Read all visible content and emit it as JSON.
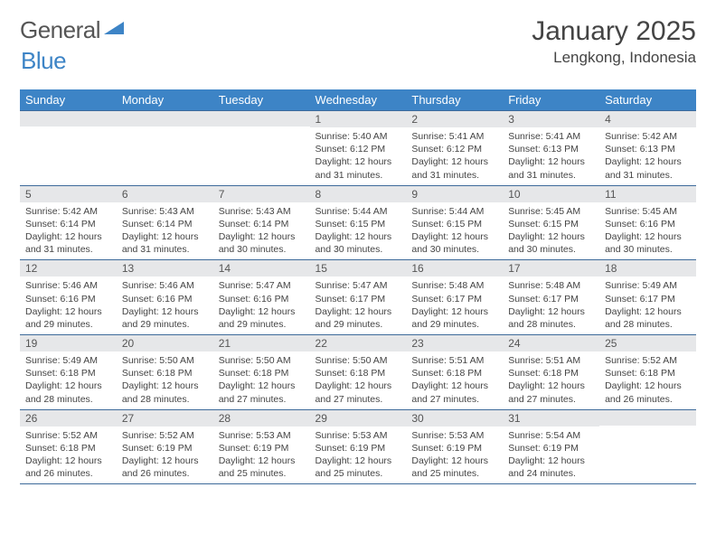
{
  "logo": {
    "word1": "General",
    "word2": "Blue"
  },
  "title": "January 2025",
  "location": "Lengkong, Indonesia",
  "colors": {
    "header_bg": "#3d84c6",
    "header_text": "#ffffff",
    "daynum_bg": "#e6e7e9",
    "row_border": "#3d6a9a",
    "text": "#444444",
    "logo_gray": "#555555",
    "logo_blue": "#3d84c6"
  },
  "weekdays": [
    "Sunday",
    "Monday",
    "Tuesday",
    "Wednesday",
    "Thursday",
    "Friday",
    "Saturday"
  ],
  "weeks": [
    [
      {
        "n": "",
        "sr": "",
        "ss": "",
        "dl": ""
      },
      {
        "n": "",
        "sr": "",
        "ss": "",
        "dl": ""
      },
      {
        "n": "",
        "sr": "",
        "ss": "",
        "dl": ""
      },
      {
        "n": "1",
        "sr": "5:40 AM",
        "ss": "6:12 PM",
        "dl": "12 hours and 31 minutes."
      },
      {
        "n": "2",
        "sr": "5:41 AM",
        "ss": "6:12 PM",
        "dl": "12 hours and 31 minutes."
      },
      {
        "n": "3",
        "sr": "5:41 AM",
        "ss": "6:13 PM",
        "dl": "12 hours and 31 minutes."
      },
      {
        "n": "4",
        "sr": "5:42 AM",
        "ss": "6:13 PM",
        "dl": "12 hours and 31 minutes."
      }
    ],
    [
      {
        "n": "5",
        "sr": "5:42 AM",
        "ss": "6:14 PM",
        "dl": "12 hours and 31 minutes."
      },
      {
        "n": "6",
        "sr": "5:43 AM",
        "ss": "6:14 PM",
        "dl": "12 hours and 31 minutes."
      },
      {
        "n": "7",
        "sr": "5:43 AM",
        "ss": "6:14 PM",
        "dl": "12 hours and 30 minutes."
      },
      {
        "n": "8",
        "sr": "5:44 AM",
        "ss": "6:15 PM",
        "dl": "12 hours and 30 minutes."
      },
      {
        "n": "9",
        "sr": "5:44 AM",
        "ss": "6:15 PM",
        "dl": "12 hours and 30 minutes."
      },
      {
        "n": "10",
        "sr": "5:45 AM",
        "ss": "6:15 PM",
        "dl": "12 hours and 30 minutes."
      },
      {
        "n": "11",
        "sr": "5:45 AM",
        "ss": "6:16 PM",
        "dl": "12 hours and 30 minutes."
      }
    ],
    [
      {
        "n": "12",
        "sr": "5:46 AM",
        "ss": "6:16 PM",
        "dl": "12 hours and 29 minutes."
      },
      {
        "n": "13",
        "sr": "5:46 AM",
        "ss": "6:16 PM",
        "dl": "12 hours and 29 minutes."
      },
      {
        "n": "14",
        "sr": "5:47 AM",
        "ss": "6:16 PM",
        "dl": "12 hours and 29 minutes."
      },
      {
        "n": "15",
        "sr": "5:47 AM",
        "ss": "6:17 PM",
        "dl": "12 hours and 29 minutes."
      },
      {
        "n": "16",
        "sr": "5:48 AM",
        "ss": "6:17 PM",
        "dl": "12 hours and 29 minutes."
      },
      {
        "n": "17",
        "sr": "5:48 AM",
        "ss": "6:17 PM",
        "dl": "12 hours and 28 minutes."
      },
      {
        "n": "18",
        "sr": "5:49 AM",
        "ss": "6:17 PM",
        "dl": "12 hours and 28 minutes."
      }
    ],
    [
      {
        "n": "19",
        "sr": "5:49 AM",
        "ss": "6:18 PM",
        "dl": "12 hours and 28 minutes."
      },
      {
        "n": "20",
        "sr": "5:50 AM",
        "ss": "6:18 PM",
        "dl": "12 hours and 28 minutes."
      },
      {
        "n": "21",
        "sr": "5:50 AM",
        "ss": "6:18 PM",
        "dl": "12 hours and 27 minutes."
      },
      {
        "n": "22",
        "sr": "5:50 AM",
        "ss": "6:18 PM",
        "dl": "12 hours and 27 minutes."
      },
      {
        "n": "23",
        "sr": "5:51 AM",
        "ss": "6:18 PM",
        "dl": "12 hours and 27 minutes."
      },
      {
        "n": "24",
        "sr": "5:51 AM",
        "ss": "6:18 PM",
        "dl": "12 hours and 27 minutes."
      },
      {
        "n": "25",
        "sr": "5:52 AM",
        "ss": "6:18 PM",
        "dl": "12 hours and 26 minutes."
      }
    ],
    [
      {
        "n": "26",
        "sr": "5:52 AM",
        "ss": "6:18 PM",
        "dl": "12 hours and 26 minutes."
      },
      {
        "n": "27",
        "sr": "5:52 AM",
        "ss": "6:19 PM",
        "dl": "12 hours and 26 minutes."
      },
      {
        "n": "28",
        "sr": "5:53 AM",
        "ss": "6:19 PM",
        "dl": "12 hours and 25 minutes."
      },
      {
        "n": "29",
        "sr": "5:53 AM",
        "ss": "6:19 PM",
        "dl": "12 hours and 25 minutes."
      },
      {
        "n": "30",
        "sr": "5:53 AM",
        "ss": "6:19 PM",
        "dl": "12 hours and 25 minutes."
      },
      {
        "n": "31",
        "sr": "5:54 AM",
        "ss": "6:19 PM",
        "dl": "12 hours and 24 minutes."
      },
      {
        "n": "",
        "sr": "",
        "ss": "",
        "dl": ""
      }
    ]
  ],
  "labels": {
    "sunrise": "Sunrise:",
    "sunset": "Sunset:",
    "daylight": "Daylight:"
  }
}
